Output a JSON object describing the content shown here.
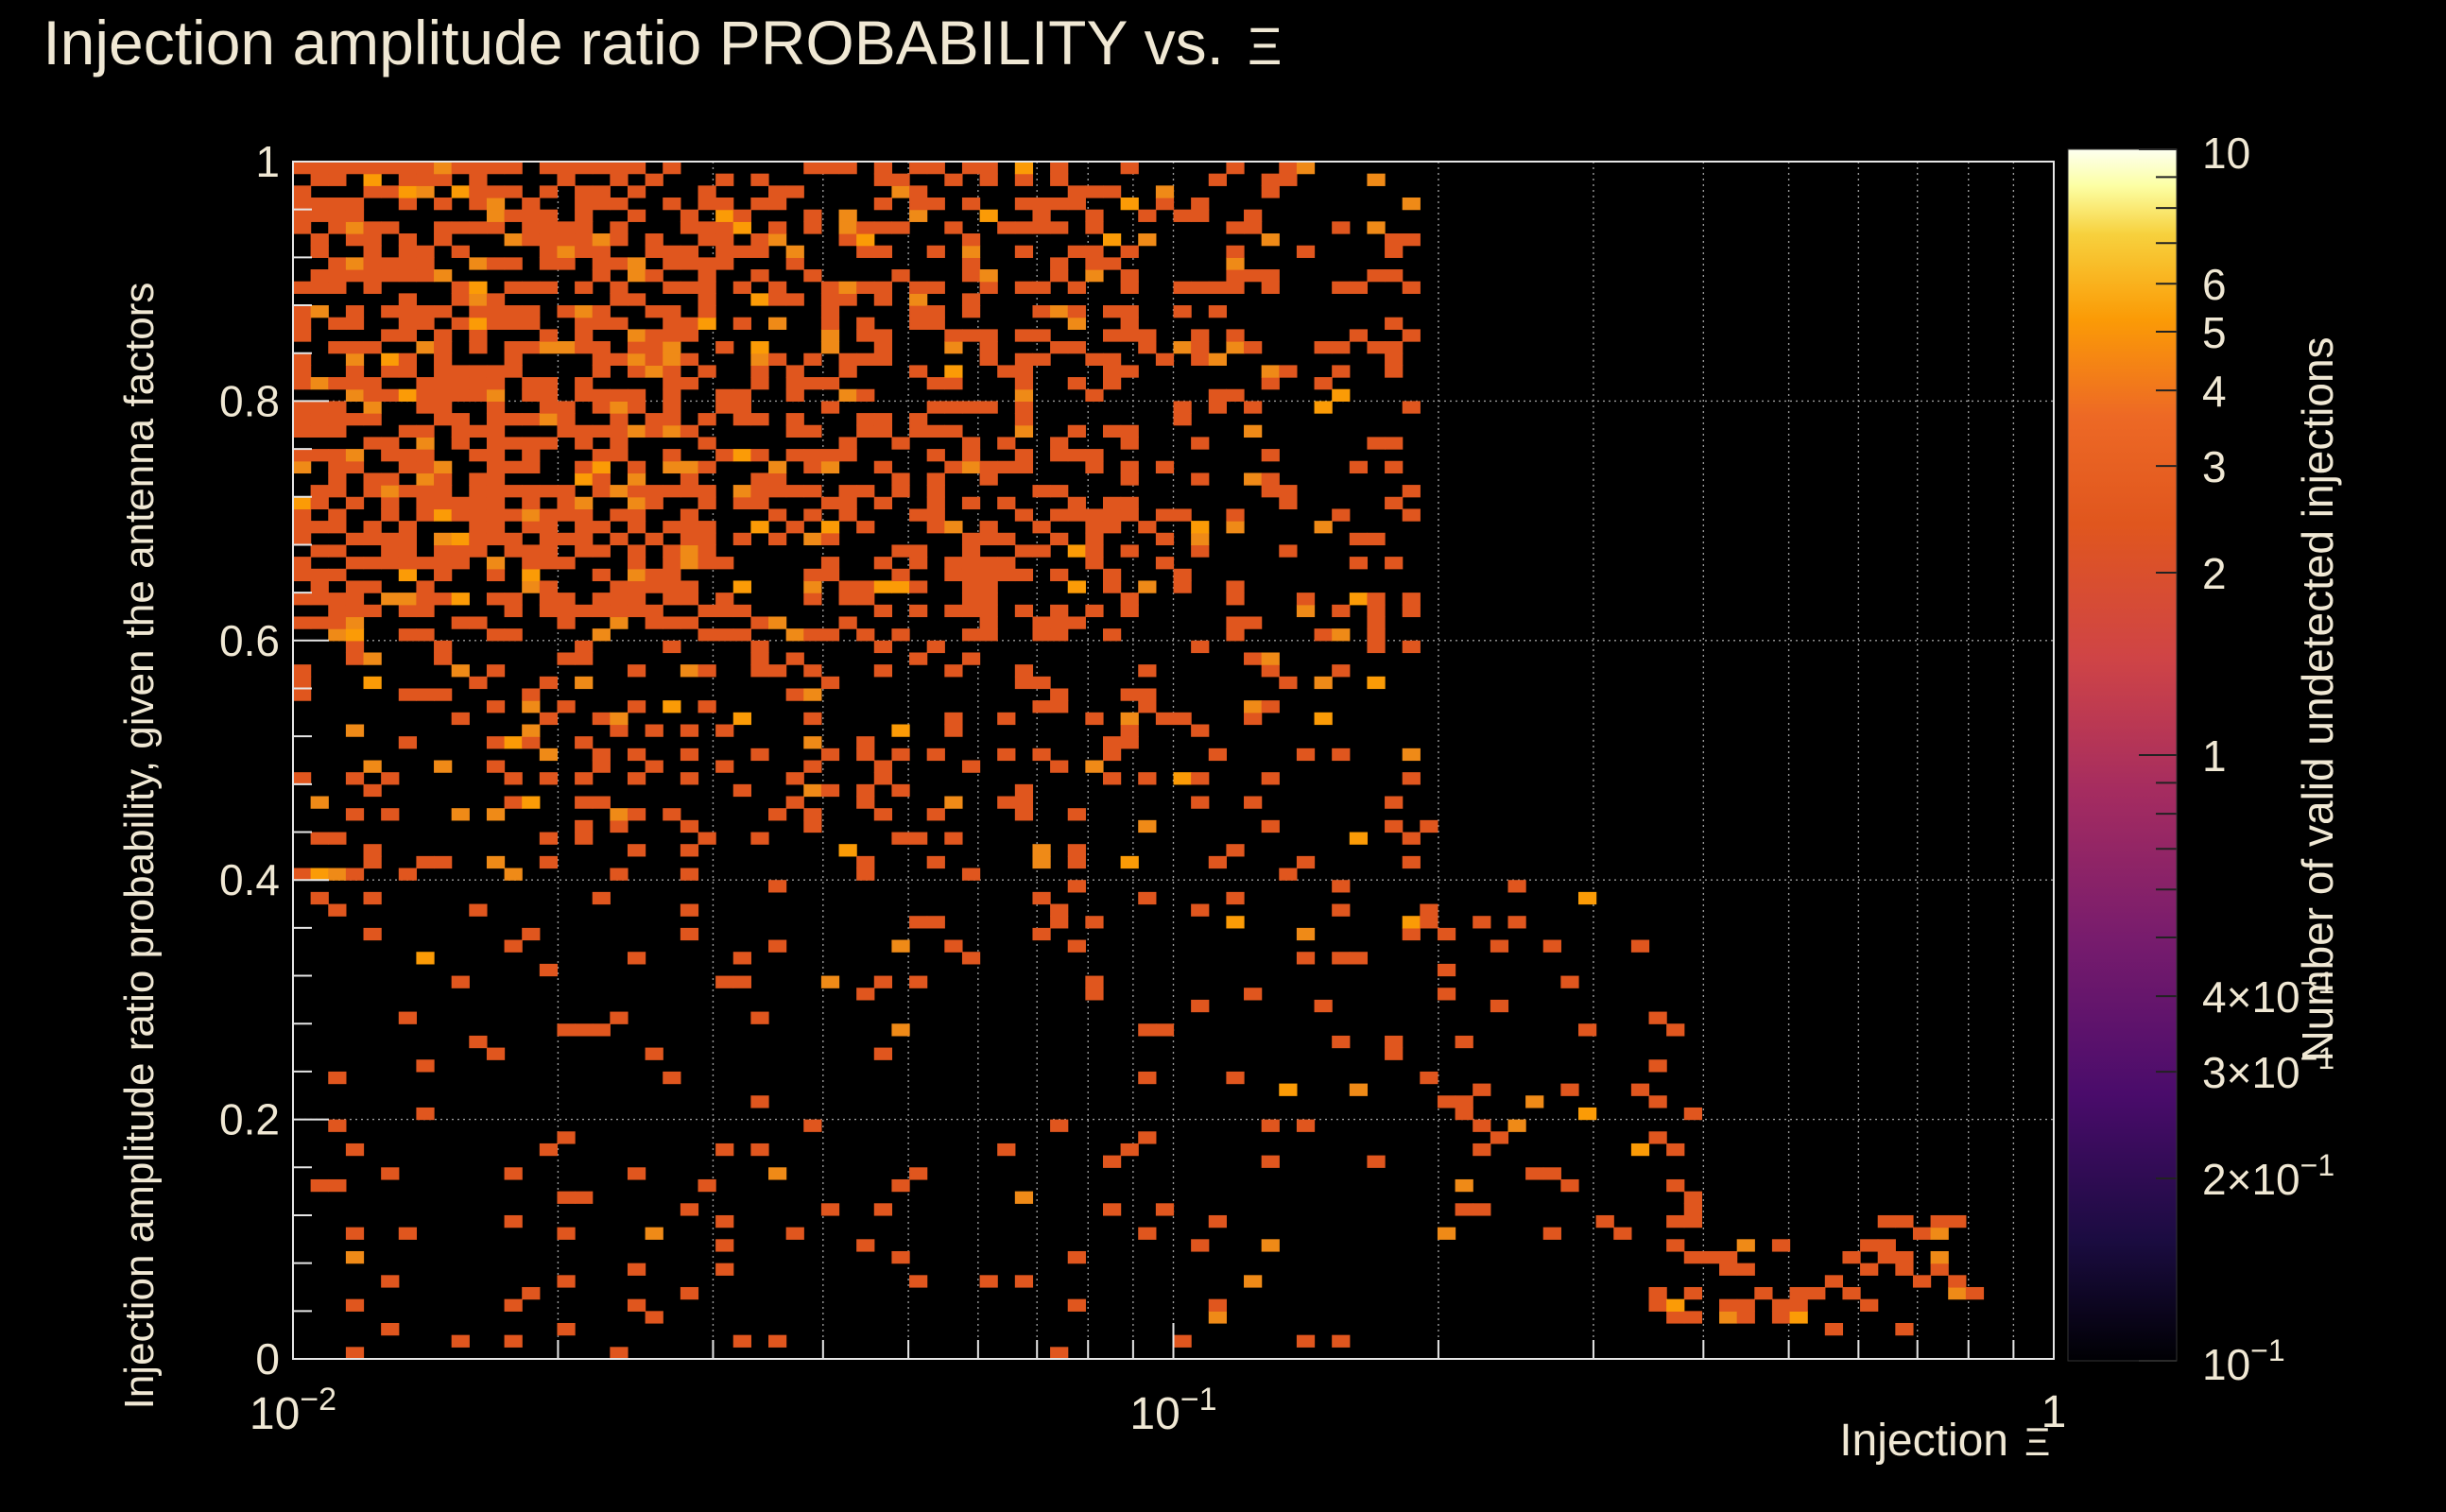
{
  "colors": {
    "background": "#000000",
    "text": "#f0e8d4",
    "grid": "#9a9a9a",
    "axis": "#e6e6e6",
    "palette": [
      "#000004",
      "#1b0c41",
      "#4a0c6b",
      "#781c6d",
      "#a52c60",
      "#cf4446",
      "#e0561e",
      "#ed6925",
      "#fb9b06",
      "#f7d13d",
      "#fcffa4",
      "#fdfff0"
    ]
  },
  "chart_data": {
    "type": "heatmap",
    "title": "Injection amplitude ratio PROBABILITY vs.",
    "title_symbol": "Ξ",
    "xlabel": "Injection",
    "xlabel_symbol": "Ξ",
    "ylabel": "Injection amplitude ratio probability, given the antenna factors",
    "zlabel": "Number of valid undetected injections",
    "x_scale": "log",
    "xlim": [
      0.01,
      1
    ],
    "ylim": [
      0,
      1
    ],
    "zlim": [
      0.1,
      10
    ],
    "z_scale": "log",
    "grid": true,
    "bins": {
      "x_count": 100,
      "y_count": 100
    },
    "x_tick_labels": [
      {
        "value": 0.01,
        "base": "10",
        "exp": "−2"
      },
      {
        "value": 0.1,
        "base": "10",
        "exp": "−1"
      },
      {
        "value": 1,
        "base": "",
        "exp": "1"
      }
    ],
    "y_tick_labels": [
      {
        "value": 0,
        "label": "0"
      },
      {
        "value": 0.2,
        "label": "0.2"
      },
      {
        "value": 0.4,
        "label": "0.4"
      },
      {
        "value": 0.6,
        "label": "0.6"
      },
      {
        "value": 0.8,
        "label": "0.8"
      },
      {
        "value": 1,
        "label": "1"
      }
    ],
    "z_tick_labels": [
      {
        "value": 10,
        "label": "10",
        "exp": ""
      },
      {
        "value": 6,
        "label": "6",
        "exp": ""
      },
      {
        "value": 5,
        "label": "5",
        "exp": ""
      },
      {
        "value": 4,
        "label": "4",
        "exp": ""
      },
      {
        "value": 3,
        "label": "3",
        "exp": ""
      },
      {
        "value": 2,
        "label": "2",
        "exp": ""
      },
      {
        "value": 1,
        "label": "1",
        "exp": ""
      },
      {
        "value": 0.4,
        "label": "4×10",
        "exp": "−1"
      },
      {
        "value": 0.3,
        "label": "3×10",
        "exp": "−1"
      },
      {
        "value": 0.2,
        "label": "2×10",
        "exp": "−1"
      },
      {
        "value": 0.1,
        "label": "10",
        "exp": "−1"
      }
    ],
    "density": {
      "regions": [
        {
          "x_range": [
            0.01,
            0.03
          ],
          "y_range": [
            0.6,
            1.0
          ],
          "fill_fraction": 0.55
        },
        {
          "x_range": [
            0.03,
            0.09
          ],
          "y_range": [
            0.6,
            1.0
          ],
          "fill_fraction": 0.4
        },
        {
          "x_range": [
            0.09,
            0.19
          ],
          "y_range": [
            0.6,
            1.0
          ],
          "fill_fraction": 0.2
        },
        {
          "x_range": [
            0.01,
            0.05
          ],
          "y_range": [
            0.4,
            0.6
          ],
          "fill_fraction": 0.2
        },
        {
          "x_range": [
            0.05,
            0.2
          ],
          "y_range": [
            0.35,
            0.6
          ],
          "fill_fraction": 0.15
        },
        {
          "x_range": [
            0.01,
            0.2
          ],
          "y_range": [
            0.0,
            0.4
          ],
          "fill_fraction": 0.07
        },
        {
          "x_range": [
            0.2,
            0.4
          ],
          "y_range": [
            0.1,
            0.4
          ],
          "fill_fraction": 0.09
        },
        {
          "x_range": [
            0.35,
            0.85
          ],
          "y_range": [
            0.02,
            0.12
          ],
          "fill_fraction": 0.3
        }
      ],
      "count_mix": [
        {
          "count": 1,
          "weight": 0.86
        },
        {
          "count": 2,
          "weight": 0.1
        },
        {
          "count": 3,
          "weight": 0.04
        }
      ]
    }
  }
}
